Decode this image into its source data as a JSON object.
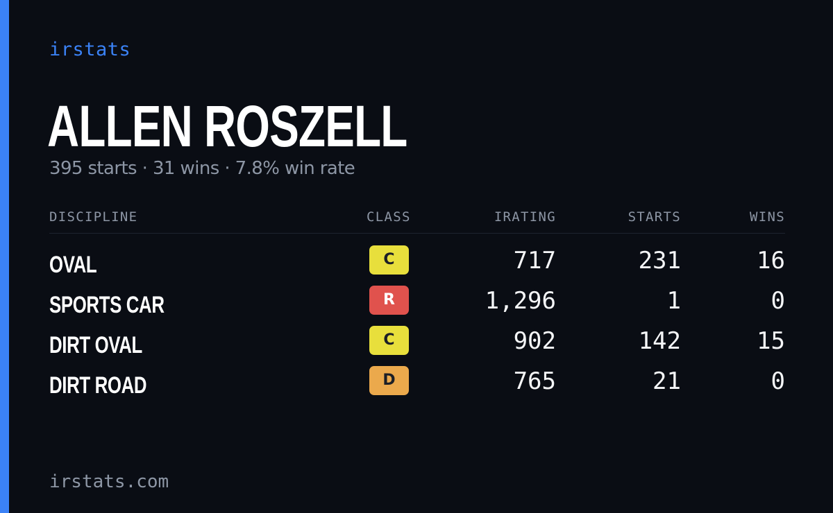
{
  "brand": "irstats",
  "driver": {
    "name": "ALLEN ROSZELL",
    "summary": "395 starts · 31 wins · 7.8% win rate"
  },
  "table": {
    "headers": {
      "discipline": "DISCIPLINE",
      "class": "CLASS",
      "irating": "IRATING",
      "starts": "STARTS",
      "wins": "WINS"
    },
    "rows": [
      {
        "discipline": "OVAL",
        "class": "C",
        "class_color": "#e8df3c",
        "irating": "717",
        "starts": "231",
        "wins": "16"
      },
      {
        "discipline": "SPORTS CAR",
        "class": "R",
        "class_color": "#e0524d",
        "irating": "1,296",
        "starts": "1",
        "wins": "0"
      },
      {
        "discipline": "DIRT OVAL",
        "class": "C",
        "class_color": "#e8df3c",
        "irating": "902",
        "starts": "142",
        "wins": "15"
      },
      {
        "discipline": "DIRT ROAD",
        "class": "D",
        "class_color": "#eba94c",
        "irating": "765",
        "starts": "21",
        "wins": "0"
      }
    ]
  },
  "footer": "irstats.com",
  "colors": {
    "accent": "#3b82f6",
    "background": "#0a0d14",
    "muted_text": "#8d96a5"
  }
}
